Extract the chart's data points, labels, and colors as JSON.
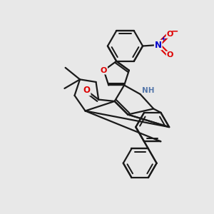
{
  "bg_color": "#e8e8e8",
  "line_color": "#1a1a1a",
  "bond_width": 1.6,
  "atom_colors": {
    "O": "#dd0000",
    "N": "#0000cc",
    "H": "#666666",
    "C": "#1a1a1a"
  },
  "figsize": [
    3.0,
    3.0
  ],
  "dpi": 100
}
